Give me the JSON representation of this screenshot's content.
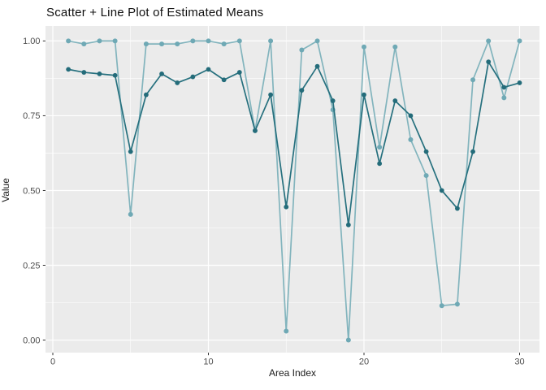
{
  "page": {
    "background": "#ffffff"
  },
  "chart": {
    "title": "Scatter + Line Plot of Estimated Means",
    "xlabel": "Area Index",
    "ylabel": "Value"
  },
  "chart_data": {
    "type": "line+scatter",
    "title": "Scatter + Line Plot of Estimated Means",
    "xlabel": "Area Index",
    "ylabel": "Value",
    "legend": "none",
    "panel_bg": "#ebebeb",
    "grid_color": "#ffffff",
    "tick_color": "#333333",
    "tick_label_color": "#4d4d4d",
    "xlim": [
      -0.47,
      31.28
    ],
    "ylim": [
      -0.042,
      1.05
    ],
    "x_ticks": {
      "values": [
        0,
        10,
        20,
        30
      ],
      "labels": [
        "0",
        "10",
        "20",
        "30"
      ],
      "minor": [
        5,
        15,
        25
      ]
    },
    "y_ticks": {
      "values": [
        0,
        0.25,
        0.5,
        0.75,
        1.0
      ],
      "labels": [
        "0.00",
        "0.25",
        "0.50",
        "0.75",
        "1.00"
      ],
      "minor": [
        0.125,
        0.375,
        0.625,
        0.875
      ]
    },
    "x": [
      1,
      2,
      3,
      4,
      5,
      6,
      7,
      8,
      9,
      10,
      11,
      12,
      13,
      14,
      15,
      16,
      17,
      18,
      19,
      20,
      21,
      22,
      23,
      24,
      25,
      26,
      27,
      28,
      29,
      30
    ],
    "series": [
      {
        "name": "light-teal-series",
        "line_color": "#82b4bd",
        "marker_color": "#6fa9b5",
        "line_width": 1.7,
        "marker_radius": 3.0,
        "values": [
          1.0,
          0.99,
          1.0,
          1.0,
          0.42,
          0.99,
          0.99,
          0.99,
          1.0,
          1.0,
          0.99,
          1.0,
          0.7,
          1.0,
          0.03,
          0.97,
          1.0,
          0.77,
          0.0,
          0.98,
          0.645,
          0.98,
          0.67,
          0.55,
          0.115,
          0.12,
          0.87,
          1.0,
          0.81,
          1.0
        ]
      },
      {
        "name": "dark-teal-series",
        "line_color": "#26707e",
        "marker_color": "#246c7a",
        "line_width": 1.7,
        "marker_radius": 2.9,
        "values": [
          0.905,
          0.895,
          0.89,
          0.885,
          0.63,
          0.82,
          0.89,
          0.86,
          0.88,
          0.905,
          0.87,
          0.895,
          0.7,
          0.82,
          0.445,
          0.835,
          0.915,
          0.8,
          0.385,
          0.82,
          0.59,
          0.8,
          0.75,
          0.63,
          0.5,
          0.44,
          0.63,
          0.93,
          0.845,
          0.86
        ]
      }
    ]
  }
}
